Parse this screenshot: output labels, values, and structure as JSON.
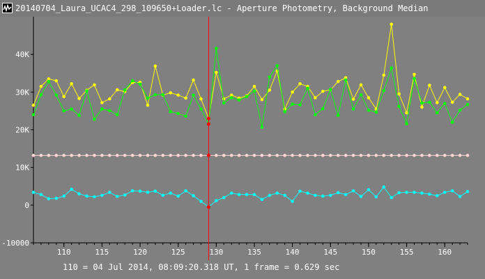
{
  "window": {
    "title": "20140704_Laura_UCAC4_298_109650+Loader.lc - Aperture Photometry, Background Median",
    "icon": "light-curve-app-icon"
  },
  "footer": {
    "text": "110 = 04 Jul 2014, 08:09:20.318 UT, 1 frame = 0.629 sec"
  },
  "colors": {
    "background": "#808080",
    "series_yellow": "#ffff00",
    "series_green": "#00ff00",
    "series_pink": "#ffd5d5",
    "series_cyan": "#00ffff",
    "cursor": "#ff0000"
  },
  "chart_data": {
    "type": "line",
    "x": [
      106,
      107,
      108,
      109,
      110,
      111,
      112,
      113,
      114,
      115,
      116,
      117,
      118,
      119,
      120,
      121,
      122,
      123,
      124,
      125,
      126,
      127,
      128,
      129,
      130,
      131,
      132,
      133,
      134,
      135,
      136,
      137,
      138,
      139,
      140,
      141,
      142,
      143,
      144,
      145,
      146,
      147,
      148,
      149,
      150,
      151,
      152,
      153,
      154,
      155,
      156,
      157,
      158,
      159,
      160,
      161,
      162,
      163
    ],
    "xticks": [
      110,
      115,
      120,
      125,
      130,
      135,
      140,
      145,
      150,
      155,
      160
    ],
    "ytick_labels": [
      "40K",
      "30K",
      "20K",
      "10K",
      "0",
      "-10000"
    ],
    "ytick_values": [
      40000,
      30000,
      20000,
      10000,
      0,
      -10000
    ],
    "xlim": [
      106,
      163
    ],
    "ylim": [
      -10000,
      50000
    ],
    "grid": false,
    "cursor_x": 129,
    "series": [
      {
        "color": "#ffff00",
        "values": [
          26500,
          31500,
          33500,
          33000,
          28800,
          32200,
          28300,
          30500,
          31900,
          27200,
          28200,
          30600,
          30100,
          32500,
          32600,
          26500,
          36900,
          29200,
          29800,
          29200,
          28400,
          33200,
          28200,
          23000,
          35200,
          28200,
          29200,
          28400,
          29000,
          31500,
          28000,
          30500,
          35600,
          25500,
          30000,
          32200,
          31500,
          28500,
          30200,
          30600,
          32800,
          33800,
          28100,
          31900,
          28500,
          25500,
          34500,
          48000,
          29500,
          24500,
          34700,
          26000,
          31800,
          27200,
          31200,
          27300,
          29400,
          28200
        ]
      },
      {
        "color": "#00ff00",
        "values": [
          24000,
          29300,
          32800,
          29200,
          25000,
          25500,
          23800,
          30300,
          22800,
          25500,
          25100,
          24000,
          30600,
          33000,
          32100,
          28400,
          29300,
          29300,
          24800,
          24300,
          23600,
          29200,
          25500,
          21500,
          41600,
          27100,
          28500,
          27900,
          28800,
          30300,
          20700,
          34000,
          37000,
          24800,
          26800,
          26600,
          31000,
          24000,
          25600,
          30700,
          23800,
          33200,
          25500,
          29300,
          25200,
          24700,
          30400,
          36400,
          26200,
          21600,
          33600,
          27100,
          27300,
          24500,
          27000,
          22000,
          25200,
          26700
        ]
      },
      {
        "color": "#ffd5d5",
        "values": [
          13200,
          13200,
          13200,
          13200,
          13200,
          13200,
          13200,
          13200,
          13200,
          13200,
          13200,
          13200,
          13200,
          13200,
          13200,
          13200,
          13200,
          13200,
          13200,
          13200,
          13200,
          13200,
          13200,
          13200,
          13200,
          13200,
          13200,
          13200,
          13200,
          13200,
          13200,
          13200,
          13200,
          13200,
          13200,
          13200,
          13200,
          13200,
          13200,
          13200,
          13200,
          13200,
          13200,
          13200,
          13200,
          13200,
          13200,
          13200,
          13200,
          13200,
          13200,
          13200,
          13200,
          13200,
          13200,
          13200,
          13200,
          13200
        ]
      },
      {
        "color": "#00ffff",
        "values": [
          3400,
          2800,
          1700,
          1800,
          2400,
          4200,
          3000,
          2400,
          2200,
          2600,
          3400,
          2300,
          2700,
          3800,
          3700,
          3400,
          3700,
          2600,
          3200,
          2400,
          3800,
          2500,
          1000,
          -500,
          1200,
          2000,
          3200,
          2800,
          2800,
          2800,
          1500,
          2600,
          3200,
          2600,
          1000,
          3700,
          3200,
          2600,
          2400,
          2600,
          3300,
          2800,
          3800,
          2300,
          4100,
          2200,
          4800,
          2000,
          3300,
          3400,
          3400,
          3200,
          2900,
          2500,
          3400,
          3800,
          2300,
          3600
        ]
      }
    ]
  }
}
